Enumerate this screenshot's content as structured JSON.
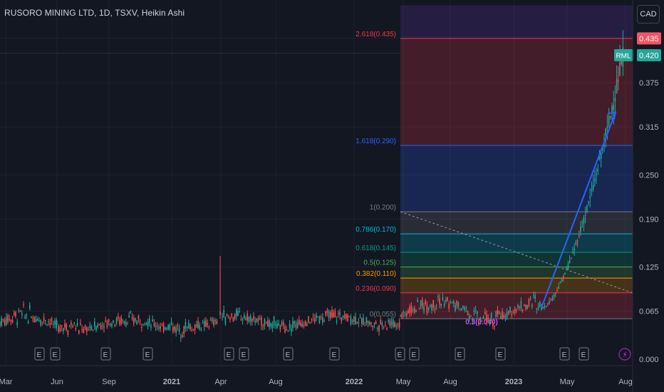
{
  "header": {
    "title": "RUSORO MINING LTD, 1D, TSXV, Heikin Ashi",
    "currency_button": "CAD"
  },
  "colors": {
    "background": "#131722",
    "grid": "#1e222d",
    "axis_text": "#b2b5be",
    "up_candle": "#26a69a",
    "down_candle": "#ef5350",
    "trend_arrow": "#2962ff",
    "last_price_tag": "#26a69a",
    "fib_high_tag": "#f7525f"
  },
  "chart_data": {
    "type": "candlestick",
    "chart_style": "Heikin Ashi",
    "symbol_label": "RML",
    "y_axis": {
      "ticks": [
        "0.000",
        "0.065",
        "0.125",
        "0.190",
        "0.250",
        "0.315",
        "0.375"
      ],
      "range": [
        0.0,
        0.48
      ]
    },
    "x_axis": {
      "ticks": [
        "Mar",
        "Jun",
        "Sep",
        "2021",
        "Apr",
        "Aug",
        "2022",
        "May",
        "Aug",
        "2023",
        "May",
        "Aug"
      ],
      "bold_ticks": [
        "2021",
        "2022",
        "2023"
      ]
    },
    "price_tags": [
      {
        "value": 0.435,
        "label": "0.435",
        "color": "#f7525f",
        "symbol": ""
      },
      {
        "value": 0.42,
        "label": "0.420",
        "color": "#26a69a",
        "symbol": "RML"
      }
    ],
    "fibonacci": [
      {
        "ratio": "2.618",
        "value": 0.435,
        "label": "2.618(0.435)",
        "color": "#f23645"
      },
      {
        "ratio": "1.618",
        "value": 0.29,
        "label": "1.618(0.290)",
        "color": "#2962ff"
      },
      {
        "ratio": "1",
        "value": 0.2,
        "label": "1(0.200)",
        "color": "#787b86"
      },
      {
        "ratio": "0.786",
        "value": 0.17,
        "label": "0.786(0.170)",
        "color": "#00bcd4"
      },
      {
        "ratio": "0.618",
        "value": 0.145,
        "label": "0.618(0.145)",
        "color": "#089981"
      },
      {
        "ratio": "0.5",
        "value": 0.125,
        "label": "0.5(0.125)",
        "color": "#4caf50"
      },
      {
        "ratio": "0.382",
        "value": 0.11,
        "label": "0.382(0.110)",
        "color": "#ff9800"
      },
      {
        "ratio": "0.236",
        "value": 0.09,
        "label": "0.236(0.090)",
        "color": "#f23645"
      },
      {
        "ratio": "0",
        "value": 0.055,
        "label": "0(0.055)",
        "color": "#787b86"
      }
    ],
    "fib_overlap_label": "0.3(0.040)",
    "fib_zones": [
      {
        "from": 0.435,
        "to": 0.48,
        "color": "#673ab7"
      },
      {
        "from": 0.29,
        "to": 0.435,
        "color": "#f23645"
      },
      {
        "from": 0.2,
        "to": 0.29,
        "color": "#2962ff"
      },
      {
        "from": 0.17,
        "to": 0.2,
        "color": "#787b86"
      },
      {
        "from": 0.145,
        "to": 0.17,
        "color": "#00bcd4"
      },
      {
        "from": 0.125,
        "to": 0.145,
        "color": "#089981"
      },
      {
        "from": 0.11,
        "to": 0.125,
        "color": "#4caf50"
      },
      {
        "from": 0.09,
        "to": 0.11,
        "color": "#ff9800"
      },
      {
        "from": 0.055,
        "to": 0.09,
        "color": "#f23645"
      }
    ],
    "earnings_marker": "E",
    "earnings_count": 15,
    "dividends_marker": "⚡",
    "series_segments": [
      {
        "span": "Mar 2020 - Jun 2020",
        "low": 0.03,
        "high": 0.07
      },
      {
        "span": "Jun 2020 - Mar 2021",
        "low": 0.035,
        "high": 0.06
      },
      {
        "span": "Apr 2021 spike",
        "value": 0.14
      },
      {
        "span": "Apr 2021 - May 2022",
        "low": 0.04,
        "high": 0.065
      },
      {
        "span": "May 2022 - Apr 2023",
        "low": 0.045,
        "high": 0.09
      },
      {
        "span": "Apr 2023 - Aug 2023 rally",
        "from": 0.07,
        "to": 0.42
      }
    ]
  }
}
